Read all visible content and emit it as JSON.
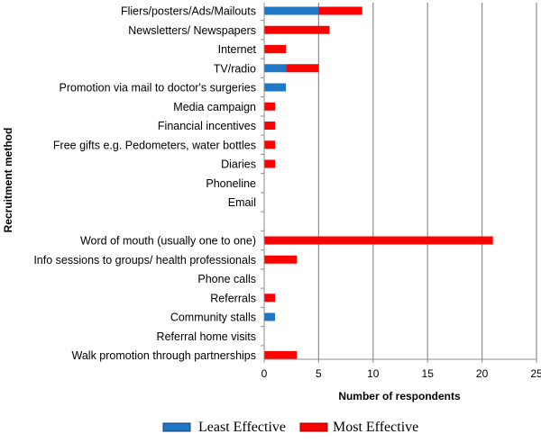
{
  "chart_data": {
    "type": "bar",
    "orientation": "horizontal",
    "stacked": true,
    "categories": [
      "Fliers/posters/Ads/Mailouts",
      "Newsletters/ Newspapers",
      "Internet",
      "TV/radio",
      "Promotion via mail to doctor's surgeries",
      "Media campaign",
      "Financial incentives",
      "Free gifts e.g. Pedometers, water bottles",
      "Diaries",
      "Phoneline",
      "Email",
      "",
      "Word of mouth (usually one to one)",
      "Info sessions to groups/ health professionals",
      "Phone calls",
      "Referrals",
      "Community stalls",
      "Referral home visits",
      "Walk promotion through partnerships"
    ],
    "series": [
      {
        "name": "Least Effective",
        "color": "#1f77c8",
        "values": [
          5,
          0,
          0,
          2,
          2,
          0,
          0,
          0,
          0,
          0,
          0,
          0,
          0,
          0,
          0,
          0,
          1,
          0,
          0
        ]
      },
      {
        "name": "Most Effective",
        "color": "#ff0000",
        "values": [
          4,
          6,
          2,
          3,
          0,
          1,
          1,
          1,
          1,
          0,
          0,
          0,
          21,
          3,
          0,
          1,
          0,
          0,
          3
        ]
      }
    ],
    "xlabel": "Number of respondents",
    "ylabel": "Recruitment method",
    "xlim": [
      0,
      25
    ],
    "xticks": [
      0,
      5,
      10,
      15,
      20,
      25
    ],
    "grid": "vertical",
    "legend_position": "bottom"
  }
}
